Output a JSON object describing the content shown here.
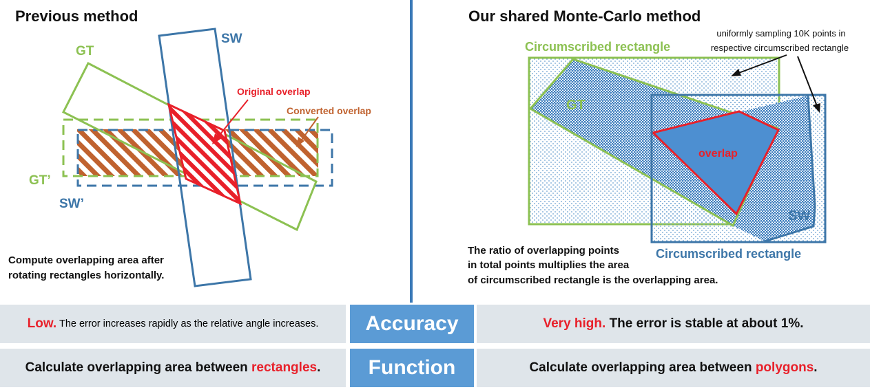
{
  "left_panel": {
    "title": "Previous method",
    "labels": {
      "gt": "GT",
      "sw": "SW",
      "gt_prime": "GT’",
      "sw_prime": "SW’",
      "original_overlap": "Original overlap",
      "converted_overlap": "Converted overlap"
    },
    "caption_lines": [
      "Compute overlapping area after",
      "rotating rectangles horizontally."
    ]
  },
  "right_panel": {
    "title": "Our shared Monte-Carlo method",
    "sampling_note_lines": [
      "uniformly sampling 10K points in",
      "respective circumscribed rectangle"
    ],
    "circumscribed_top": "Circumscribed rectangle",
    "circumscribed_bottom": "Circumscribed rectangle",
    "gt": "GT",
    "sw": "SW",
    "overlap": "overlap",
    "caption_lines": [
      "The ratio of overlapping points",
      "in total points multiplies the area",
      "of circumscribed rectangle is the overlapping area."
    ]
  },
  "comparison": {
    "accuracy": {
      "label": "Accuracy",
      "left_highlight": "Low.",
      "left_text": " The error increases rapidly as the relative angle increases.",
      "right_highlight": "Very high.",
      "right_text": " The error is stable at about 1%."
    },
    "function": {
      "label": "Function",
      "left_prefix": "Calculate overlapping area between ",
      "left_highlight": "rectangles",
      "left_suffix": ".",
      "right_prefix": "Calculate overlapping area between ",
      "right_highlight": "polygons",
      "right_suffix": "."
    }
  },
  "colors": {
    "green": "#8cc152",
    "blue": "#3d76a8",
    "red": "#e8202a",
    "orange": "#c0622f",
    "divider": "#3a79b7",
    "table_blue": "#5b9bd5",
    "table_grey": "#dfe5ea"
  }
}
